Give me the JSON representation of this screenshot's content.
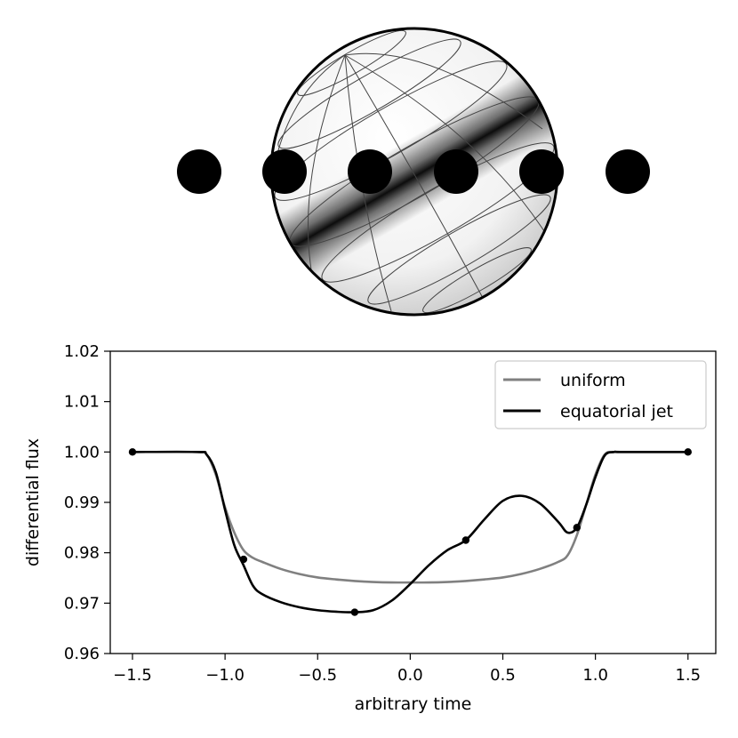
{
  "illustration": {
    "planet_band_color": "#000000",
    "transit_disk_color": "#000000",
    "transit_disk_count": 6
  },
  "chart_data": {
    "type": "line",
    "title": "",
    "xlabel": "arbitrary time",
    "ylabel": "differential flux",
    "xlim": [
      -1.62,
      1.65
    ],
    "ylim": [
      0.96,
      1.02
    ],
    "xticks": [
      -1.5,
      -1.0,
      -0.5,
      0.0,
      0.5,
      1.0,
      1.5
    ],
    "xtick_labels": [
      "−1.5",
      "−1.0",
      "−0.5",
      "0.0",
      "0.5",
      "1.0",
      "1.5"
    ],
    "yticks": [
      0.96,
      0.97,
      0.98,
      0.99,
      1.0,
      1.01,
      1.02
    ],
    "ytick_labels": [
      "0.96",
      "0.97",
      "0.98",
      "0.99",
      "1.00",
      "1.01",
      "1.02"
    ],
    "grid": false,
    "legend_position": "top-right",
    "series": [
      {
        "name": "uniform",
        "color": "#808080",
        "x": [
          -1.5,
          -1.15,
          -1.1,
          -1.05,
          -1.0,
          -0.95,
          -0.9,
          -0.85,
          -0.8,
          -0.7,
          -0.6,
          -0.5,
          -0.4,
          -0.3,
          -0.2,
          -0.1,
          0.0,
          0.1,
          0.2,
          0.3,
          0.4,
          0.5,
          0.6,
          0.7,
          0.8,
          0.85,
          0.9,
          0.95,
          1.0,
          1.05,
          1.1,
          1.15,
          1.5
        ],
        "y": [
          1.0,
          1.0,
          0.9995,
          0.9955,
          0.989,
          0.984,
          0.9805,
          0.979,
          0.9782,
          0.9768,
          0.9758,
          0.9751,
          0.9747,
          0.9744,
          0.9742,
          0.9741,
          0.9741,
          0.9741,
          0.9742,
          0.9744,
          0.9747,
          0.9751,
          0.9758,
          0.9768,
          0.9782,
          0.9795,
          0.9835,
          0.9895,
          0.9955,
          0.9995,
          1.0,
          1.0,
          1.0
        ]
      },
      {
        "name": "equatorial jet",
        "color": "#000000",
        "x": [
          -1.5,
          -1.15,
          -1.1,
          -1.05,
          -1.0,
          -0.95,
          -0.9,
          -0.85,
          -0.8,
          -0.7,
          -0.6,
          -0.5,
          -0.4,
          -0.3,
          -0.2,
          -0.1,
          0.0,
          0.1,
          0.2,
          0.3,
          0.4,
          0.5,
          0.6,
          0.7,
          0.8,
          0.85,
          0.9,
          0.95,
          1.0,
          1.05,
          1.1,
          1.15,
          1.5
        ],
        "y": [
          1.0,
          1.0,
          0.9995,
          0.996,
          0.9885,
          0.9815,
          0.9775,
          0.9735,
          0.9718,
          0.9702,
          0.9692,
          0.9686,
          0.9683,
          0.9682,
          0.9686,
          0.9705,
          0.9738,
          0.9775,
          0.9805,
          0.9825,
          0.9866,
          0.9903,
          0.9913,
          0.9898,
          0.9861,
          0.984,
          0.985,
          0.9895,
          0.995,
          0.9993,
          1.0,
          1.0,
          1.0
        ]
      }
    ],
    "markers": {
      "x": [
        -1.5,
        -0.9,
        -0.3,
        0.3,
        0.9,
        1.5
      ],
      "y": [
        1.0,
        0.9787,
        0.9682,
        0.9825,
        0.985,
        1.0
      ]
    }
  }
}
